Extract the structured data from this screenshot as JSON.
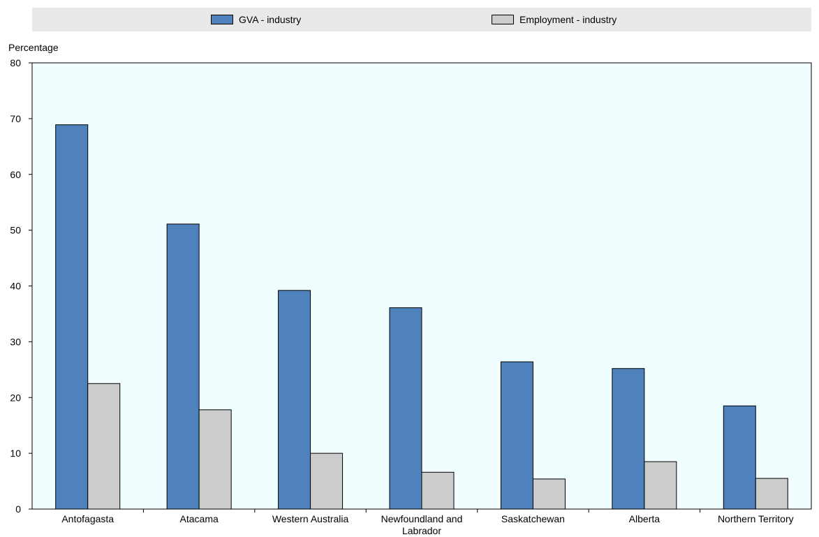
{
  "chart_data": {
    "type": "bar",
    "ylabel": "Percentage",
    "ylim": [
      0,
      80
    ],
    "yticks": [
      0,
      10,
      20,
      30,
      40,
      50,
      60,
      70,
      80
    ],
    "categories": [
      "Antofagasta",
      "Atacama",
      "Western Australia",
      "Newfoundland and Labrador",
      "Saskatchewan",
      "Alberta",
      "Northern Territory"
    ],
    "series": [
      {
        "name": "GVA - industry",
        "color": "#4f81bd",
        "values": [
          68.9,
          51.1,
          39.2,
          36.1,
          26.4,
          25.2,
          18.5
        ]
      },
      {
        "name": "Employment - industry",
        "color": "#cccccc",
        "values": [
          22.5,
          17.8,
          10.0,
          6.6,
          5.4,
          8.5,
          5.5
        ]
      }
    ],
    "legend_position": "top",
    "plot_background": "#f0feff"
  }
}
